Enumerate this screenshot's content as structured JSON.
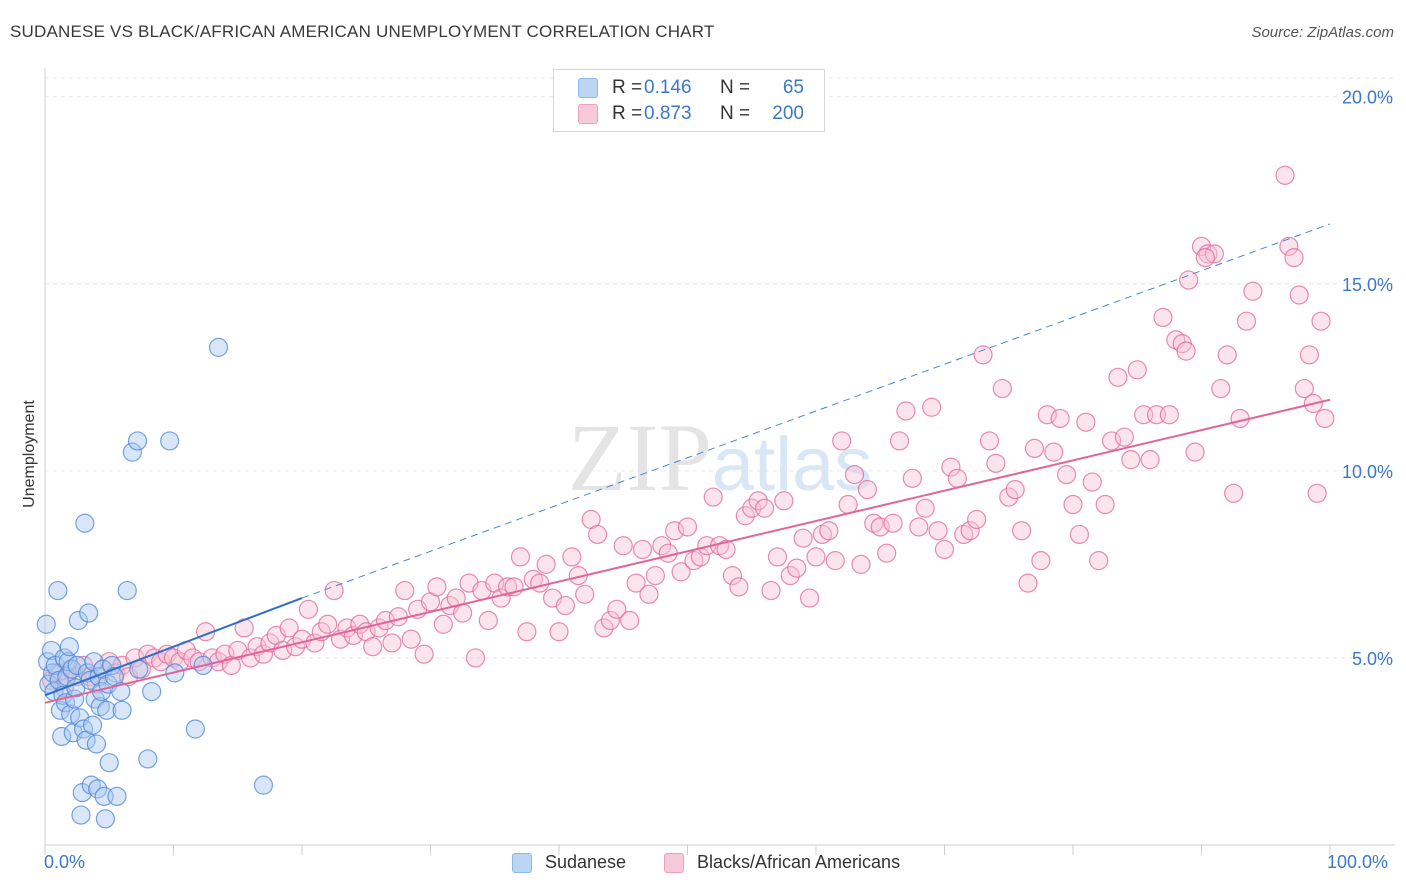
{
  "title": "SUDANESE VS BLACK/AFRICAN AMERICAN UNEMPLOYMENT CORRELATION CHART",
  "source": "Source: ZipAtlas.com",
  "watermark": "ZIPatlas",
  "legend_stats": [
    {
      "r_label": "R =",
      "r_value": "0.146",
      "n_label": "N =",
      "n_value": "65",
      "color": "#8fb8ea",
      "fill": "#bcd5f3"
    },
    {
      "r_label": "R =",
      "r_value": "0.873",
      "n_label": "N =",
      "n_value": "200",
      "color": "#f0a0bc",
      "fill": "#f8c9d9"
    }
  ],
  "x_left_label": "0.0%",
  "x_right_label": "100.0%",
  "chart_data": {
    "type": "scatter",
    "ylabel": "Unemployment",
    "xlim": [
      0,
      100
    ],
    "ylim": [
      0,
      20.5
    ],
    "yticks": [
      5,
      10,
      15,
      20
    ],
    "ytick_labels": [
      "5.0%",
      "10.0%",
      "15.0%",
      "20.0%"
    ],
    "grid": true,
    "legend_position": "bottom",
    "series": [
      {
        "name": "Sudanese",
        "color": "#4a86d6",
        "fill": "#a9c8ef",
        "trend": {
          "x0": 0,
          "y0": 4.0,
          "x1": 20,
          "y1": 6.6,
          "dash_to_x": 100,
          "dash_to_y": 16.6
        },
        "points": [
          [
            0.1,
            5.9
          ],
          [
            0.2,
            4.9
          ],
          [
            0.3,
            4.3
          ],
          [
            0.5,
            5.2
          ],
          [
            0.6,
            4.6
          ],
          [
            0.7,
            4.1
          ],
          [
            0.8,
            4.8
          ],
          [
            1.0,
            6.8
          ],
          [
            1.1,
            4.4
          ],
          [
            1.2,
            3.6
          ],
          [
            1.3,
            2.9
          ],
          [
            1.4,
            4.0
          ],
          [
            1.5,
            5.0
          ],
          [
            1.6,
            3.8
          ],
          [
            1.7,
            4.5
          ],
          [
            1.8,
            4.9
          ],
          [
            1.9,
            5.3
          ],
          [
            2.0,
            3.5
          ],
          [
            2.1,
            4.7
          ],
          [
            2.2,
            3.0
          ],
          [
            2.3,
            3.9
          ],
          [
            2.4,
            4.2
          ],
          [
            2.5,
            4.8
          ],
          [
            2.6,
            6.0
          ],
          [
            2.7,
            3.4
          ],
          [
            2.8,
            0.8
          ],
          [
            2.9,
            1.4
          ],
          [
            3.0,
            3.1
          ],
          [
            3.1,
            8.6
          ],
          [
            3.2,
            2.8
          ],
          [
            3.3,
            4.6
          ],
          [
            3.4,
            6.2
          ],
          [
            3.5,
            4.4
          ],
          [
            3.6,
            1.6
          ],
          [
            3.7,
            3.2
          ],
          [
            3.8,
            4.9
          ],
          [
            3.9,
            3.9
          ],
          [
            4.0,
            2.7
          ],
          [
            4.1,
            1.5
          ],
          [
            4.2,
            4.5
          ],
          [
            4.3,
            3.7
          ],
          [
            4.4,
            4.1
          ],
          [
            4.5,
            4.7
          ],
          [
            4.6,
            1.3
          ],
          [
            4.7,
            0.7
          ],
          [
            4.8,
            3.6
          ],
          [
            4.9,
            4.3
          ],
          [
            5.0,
            2.2
          ],
          [
            5.2,
            4.8
          ],
          [
            5.4,
            4.5
          ],
          [
            5.6,
            1.3
          ],
          [
            5.9,
            4.1
          ],
          [
            6.0,
            3.6
          ],
          [
            6.4,
            6.8
          ],
          [
            6.8,
            10.5
          ],
          [
            7.2,
            10.8
          ],
          [
            7.3,
            4.7
          ],
          [
            8.0,
            2.3
          ],
          [
            8.3,
            4.1
          ],
          [
            9.7,
            10.8
          ],
          [
            10.1,
            4.6
          ],
          [
            11.7,
            3.1
          ],
          [
            12.3,
            4.8
          ],
          [
            13.5,
            13.3
          ],
          [
            17.0,
            1.6
          ]
        ]
      },
      {
        "name": "Blacks/African Americans",
        "color": "#e0659a",
        "fill": "#f7c3d5",
        "trend": {
          "x0": 0,
          "y0": 3.8,
          "x1": 100,
          "y1": 11.9
        },
        "points": [
          [
            0.5,
            4.4
          ],
          [
            1.0,
            4.6
          ],
          [
            1.5,
            4.2
          ],
          [
            2.0,
            4.7
          ],
          [
            2.5,
            4.5
          ],
          [
            3.0,
            4.8
          ],
          [
            3.5,
            4.5
          ],
          [
            4.0,
            4.3
          ],
          [
            4.5,
            4.7
          ],
          [
            5.0,
            4.9
          ],
          [
            5.5,
            4.6
          ],
          [
            6.0,
            4.8
          ],
          [
            6.5,
            4.5
          ],
          [
            7.0,
            5.0
          ],
          [
            7.5,
            4.7
          ],
          [
            8.0,
            5.1
          ],
          [
            8.5,
            5.0
          ],
          [
            9.0,
            4.9
          ],
          [
            9.5,
            5.1
          ],
          [
            10.0,
            5.0
          ],
          [
            10.5,
            4.9
          ],
          [
            11.0,
            5.2
          ],
          [
            11.5,
            5.0
          ],
          [
            12.0,
            4.9
          ],
          [
            12.5,
            5.7
          ],
          [
            13.0,
            5.0
          ],
          [
            13.5,
            4.9
          ],
          [
            14.0,
            5.1
          ],
          [
            14.5,
            4.8
          ],
          [
            15.0,
            5.2
          ],
          [
            15.5,
            5.8
          ],
          [
            16.0,
            5.0
          ],
          [
            16.5,
            5.3
          ],
          [
            17.0,
            5.1
          ],
          [
            17.5,
            5.4
          ],
          [
            18.0,
            5.6
          ],
          [
            18.5,
            5.2
          ],
          [
            19.0,
            5.8
          ],
          [
            19.5,
            5.3
          ],
          [
            20.0,
            5.5
          ],
          [
            20.5,
            6.3
          ],
          [
            21.0,
            5.4
          ],
          [
            21.5,
            5.7
          ],
          [
            22.0,
            5.9
          ],
          [
            22.5,
            6.8
          ],
          [
            23.0,
            5.5
          ],
          [
            23.5,
            5.8
          ],
          [
            24.0,
            5.6
          ],
          [
            24.5,
            5.9
          ],
          [
            25.0,
            5.7
          ],
          [
            25.5,
            5.3
          ],
          [
            26.0,
            5.8
          ],
          [
            26.5,
            6.0
          ],
          [
            27.0,
            5.4
          ],
          [
            27.5,
            6.1
          ],
          [
            28.0,
            6.8
          ],
          [
            28.5,
            5.5
          ],
          [
            29.0,
            6.3
          ],
          [
            29.5,
            5.1
          ],
          [
            30.0,
            6.5
          ],
          [
            30.5,
            6.9
          ],
          [
            31.0,
            5.9
          ],
          [
            31.5,
            6.4
          ],
          [
            32.0,
            6.6
          ],
          [
            32.5,
            6.2
          ],
          [
            33.0,
            7.0
          ],
          [
            33.5,
            5.0
          ],
          [
            34.0,
            6.8
          ],
          [
            34.5,
            6.0
          ],
          [
            35.0,
            7.0
          ],
          [
            35.5,
            6.6
          ],
          [
            36.0,
            6.9
          ],
          [
            36.5,
            6.9
          ],
          [
            37.0,
            7.7
          ],
          [
            37.5,
            5.7
          ],
          [
            38.0,
            7.1
          ],
          [
            38.5,
            7.0
          ],
          [
            39.0,
            7.5
          ],
          [
            39.5,
            6.6
          ],
          [
            40.0,
            5.7
          ],
          [
            40.5,
            6.4
          ],
          [
            41.0,
            7.7
          ],
          [
            41.5,
            7.2
          ],
          [
            42.0,
            6.7
          ],
          [
            42.5,
            8.7
          ],
          [
            43.0,
            8.3
          ],
          [
            43.5,
            5.8
          ],
          [
            44.0,
            6.0
          ],
          [
            44.5,
            6.3
          ],
          [
            45.0,
            8.0
          ],
          [
            45.5,
            6.0
          ],
          [
            46.0,
            7.0
          ],
          [
            46.5,
            7.9
          ],
          [
            47.0,
            6.7
          ],
          [
            47.5,
            7.2
          ],
          [
            48.0,
            8.0
          ],
          [
            48.5,
            7.8
          ],
          [
            49.0,
            8.4
          ],
          [
            49.5,
            7.3
          ],
          [
            50.0,
            8.5
          ],
          [
            50.5,
            7.6
          ],
          [
            51.0,
            7.7
          ],
          [
            51.5,
            8.0
          ],
          [
            52.0,
            9.3
          ],
          [
            52.5,
            8.0
          ],
          [
            53.0,
            7.9
          ],
          [
            53.5,
            7.2
          ],
          [
            54.0,
            6.9
          ],
          [
            54.5,
            8.8
          ],
          [
            55.0,
            9.0
          ],
          [
            55.5,
            9.2
          ],
          [
            56.0,
            9.0
          ],
          [
            56.5,
            6.8
          ],
          [
            57.0,
            7.7
          ],
          [
            57.5,
            9.2
          ],
          [
            58.0,
            7.2
          ],
          [
            58.5,
            7.4
          ],
          [
            59.0,
            8.2
          ],
          [
            59.5,
            6.6
          ],
          [
            60.0,
            7.7
          ],
          [
            60.5,
            8.3
          ],
          [
            61.0,
            8.4
          ],
          [
            61.5,
            7.6
          ],
          [
            62.0,
            10.8
          ],
          [
            62.5,
            9.1
          ],
          [
            63.0,
            9.9
          ],
          [
            63.5,
            7.5
          ],
          [
            64.0,
            9.5
          ],
          [
            64.5,
            8.6
          ],
          [
            65.0,
            8.5
          ],
          [
            65.5,
            7.8
          ],
          [
            66.0,
            8.6
          ],
          [
            66.5,
            10.8
          ],
          [
            67.0,
            11.6
          ],
          [
            67.5,
            9.8
          ],
          [
            68.0,
            8.5
          ],
          [
            68.5,
            9.0
          ],
          [
            69.0,
            11.7
          ],
          [
            69.5,
            8.4
          ],
          [
            70.0,
            7.9
          ],
          [
            70.5,
            10.1
          ],
          [
            71.0,
            9.8
          ],
          [
            71.5,
            8.3
          ],
          [
            72.0,
            8.4
          ],
          [
            72.5,
            8.7
          ],
          [
            73.0,
            13.1
          ],
          [
            73.5,
            10.8
          ],
          [
            74.0,
            10.2
          ],
          [
            74.5,
            12.2
          ],
          [
            75.0,
            9.3
          ],
          [
            75.5,
            9.5
          ],
          [
            76.0,
            8.4
          ],
          [
            76.5,
            7.0
          ],
          [
            77.0,
            10.6
          ],
          [
            77.5,
            7.6
          ],
          [
            78.0,
            11.5
          ],
          [
            78.5,
            10.5
          ],
          [
            79.0,
            11.4
          ],
          [
            79.5,
            9.9
          ],
          [
            80.0,
            9.1
          ],
          [
            80.5,
            8.3
          ],
          [
            81.0,
            11.3
          ],
          [
            81.5,
            9.7
          ],
          [
            82.0,
            7.6
          ],
          [
            82.5,
            9.1
          ],
          [
            83.0,
            10.8
          ],
          [
            83.5,
            12.5
          ],
          [
            84.0,
            10.9
          ],
          [
            84.5,
            10.3
          ],
          [
            85.0,
            12.7
          ],
          [
            85.5,
            11.5
          ],
          [
            86.0,
            10.3
          ],
          [
            86.5,
            11.5
          ],
          [
            87.0,
            14.1
          ],
          [
            87.5,
            11.5
          ],
          [
            88.0,
            13.5
          ],
          [
            88.5,
            13.4
          ],
          [
            89.0,
            15.1
          ],
          [
            89.5,
            10.5
          ],
          [
            90.0,
            16.0
          ],
          [
            90.5,
            15.8
          ],
          [
            91.0,
            15.8
          ],
          [
            91.5,
            12.2
          ],
          [
            92.0,
            13.1
          ],
          [
            92.5,
            9.4
          ],
          [
            93.0,
            11.4
          ],
          [
            93.5,
            14.0
          ],
          [
            94.0,
            14.8
          ],
          [
            90.3,
            15.7
          ],
          [
            96.5,
            17.9
          ],
          [
            96.8,
            16.0
          ],
          [
            97.2,
            15.7
          ],
          [
            97.6,
            14.7
          ],
          [
            98.0,
            12.2
          ],
          [
            98.4,
            13.1
          ],
          [
            98.7,
            11.8
          ],
          [
            99.0,
            9.4
          ],
          [
            99.3,
            14.0
          ],
          [
            99.6,
            11.4
          ],
          [
            88.8,
            13.2
          ]
        ]
      }
    ]
  }
}
